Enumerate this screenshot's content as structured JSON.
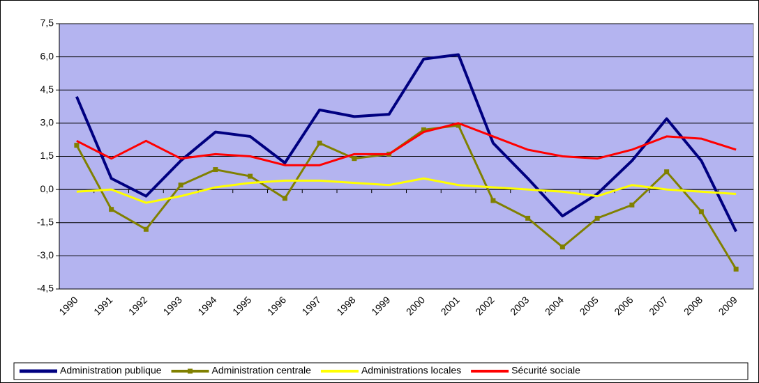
{
  "chart_data": {
    "type": "line",
    "categories": [
      "1990",
      "1991",
      "1992",
      "1993",
      "1994",
      "1995",
      "1996",
      "1997",
      "1998",
      "1999",
      "2000",
      "2001",
      "2002",
      "2003",
      "2004",
      "2005",
      "2006",
      "2007",
      "2008",
      "2009"
    ],
    "series": [
      {
        "name": "Administration publique",
        "color": "#000080",
        "width": 4,
        "marker": false,
        "values": [
          4.2,
          0.5,
          -0.3,
          1.3,
          2.6,
          2.4,
          1.2,
          3.6,
          3.3,
          3.4,
          5.9,
          6.1,
          2.1,
          0.5,
          -1.2,
          -0.2,
          1.3,
          3.2,
          1.3,
          -1.9
        ]
      },
      {
        "name": "Administration centrale",
        "color": "#808000",
        "width": 3,
        "marker": true,
        "values": [
          2.0,
          -0.9,
          -1.8,
          0.2,
          0.9,
          0.6,
          -0.4,
          2.1,
          1.4,
          1.6,
          2.7,
          2.9,
          -0.5,
          -1.3,
          -2.6,
          -1.3,
          -0.7,
          0.8,
          -1.0,
          -3.6
        ]
      },
      {
        "name": "Administrations locales",
        "color": "#ffff00",
        "width": 3,
        "marker": false,
        "values": [
          -0.1,
          0.0,
          -0.6,
          -0.3,
          0.1,
          0.3,
          0.4,
          0.4,
          0.3,
          0.2,
          0.5,
          0.2,
          0.1,
          0.0,
          -0.1,
          -0.3,
          0.2,
          0.0,
          -0.1,
          -0.2
        ]
      },
      {
        "name": "Sécurité sociale",
        "color": "#ff0000",
        "width": 3,
        "marker": false,
        "values": [
          2.2,
          1.4,
          2.2,
          1.4,
          1.6,
          1.5,
          1.1,
          1.1,
          1.6,
          1.6,
          2.6,
          3.0,
          2.4,
          1.8,
          1.5,
          1.4,
          1.8,
          2.4,
          2.3,
          1.8
        ]
      }
    ],
    "ylim": [
      -4.5,
      7.5
    ],
    "yticks": [
      {
        "value": -4.5,
        "label": "-4,5"
      },
      {
        "value": -3,
        "label": "-3,0"
      },
      {
        "value": -1.5,
        "label": "-1,5"
      },
      {
        "value": 0,
        "label": "0,0"
      },
      {
        "value": 1.5,
        "label": "1,5"
      },
      {
        "value": 3,
        "label": "3,0"
      },
      {
        "value": 4.5,
        "label": "4,5"
      },
      {
        "value": 6,
        "label": "6,0"
      },
      {
        "value": 7.5,
        "label": "7,5"
      }
    ],
    "grid": true,
    "background": "#b4b4f0",
    "legend": "bottom"
  }
}
